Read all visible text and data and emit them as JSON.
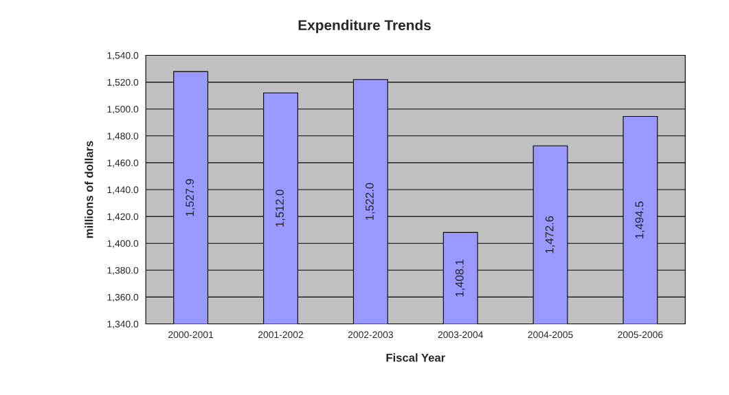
{
  "chart_data": {
    "type": "bar",
    "title": "Expenditure Trends",
    "xlabel": "Fiscal Year",
    "ylabel": "millions of dollars",
    "categories": [
      "2000-2001",
      "2001-2002",
      "2002-2003",
      "2003-2004",
      "2004-2005",
      "2005-2006"
    ],
    "values": [
      1527.9,
      1512.0,
      1522.0,
      1408.1,
      1472.6,
      1494.5
    ],
    "value_labels": [
      "1,527.9",
      "1,512.0",
      "1,522.0",
      "1,408.1",
      "1,472.6",
      "1,494.5"
    ],
    "color": "#9999ff",
    "ylim": [
      1340,
      1540
    ],
    "yticks": [
      {
        "value": 1340,
        "label": "1,340.0"
      },
      {
        "value": 1360,
        "label": "1,360.0"
      },
      {
        "value": 1380,
        "label": "1,380.0"
      },
      {
        "value": 1400,
        "label": "1,400.0"
      },
      {
        "value": 1420,
        "label": "1,420.0"
      },
      {
        "value": 1440,
        "label": "1,440.0"
      },
      {
        "value": 1460,
        "label": "1,460.0"
      },
      {
        "value": 1480,
        "label": "1,480.0"
      },
      {
        "value": 1500,
        "label": "1,500.0"
      },
      {
        "value": 1520,
        "label": "1,520.0"
      },
      {
        "value": 1540,
        "label": "1,540.0"
      }
    ],
    "grid": "y"
  }
}
